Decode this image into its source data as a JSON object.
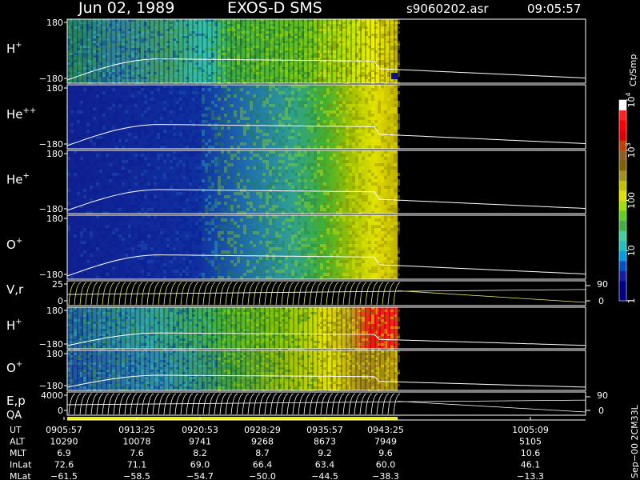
{
  "header": {
    "date": "Jun 02, 1989",
    "instrument": "EXOS-D SMS",
    "file": "s9060202.asr",
    "time": "09:05:57"
  },
  "colorbar": {
    "title": "Ct/Smp",
    "ticks": [
      {
        "label": "1",
        "value": 1
      },
      {
        "label": "10",
        "value": 10
      },
      {
        "label": "100",
        "value": 100
      },
      {
        "label": "10",
        "exp": "3",
        "value": 1000
      },
      {
        "label": "10",
        "exp": "4",
        "value": 10000
      }
    ],
    "colors": [
      "#000080",
      "#00008b",
      "#1a1aa8",
      "#0050c8",
      "#00a0e0",
      "#20c0c0",
      "#40d0a0",
      "#40b040",
      "#60d020",
      "#a0e000",
      "#e0e000",
      "#c0c000",
      "#a09020",
      "#806000",
      "#906020",
      "#c04000",
      "#e00000",
      "#ff0000",
      "#ff2020",
      "#ffffff"
    ]
  },
  "panels": [
    {
      "id": "h-plus",
      "label": "H",
      "sup": "+",
      "ymax": "180",
      "ymin": "−180"
    },
    {
      "id": "he-plus-plus",
      "label": "He",
      "sup": "++",
      "ymax": "180",
      "ymin": "−180"
    },
    {
      "id": "he-plus",
      "label": "He",
      "sup": "+",
      "ymax": "180",
      "ymin": "−180"
    },
    {
      "id": "o-plus",
      "label": "O",
      "sup": "+",
      "ymax": "180",
      "ymin": "−180"
    },
    {
      "id": "vr",
      "label": "V,r",
      "ymax": "25",
      "ymin": "0",
      "right_max": "90",
      "right_min": "0"
    },
    {
      "id": "h-plus-2",
      "label": "H",
      "sup": "+",
      "ymax": "180",
      "ymin": "−180"
    },
    {
      "id": "o-plus-2",
      "label": "O",
      "sup": "+",
      "ymax": "180",
      "ymin": "−180"
    },
    {
      "id": "ep",
      "label": "E,p",
      "ymax": "4000",
      "ymin": "0",
      "right_max": "90",
      "right_min": "0"
    }
  ],
  "qa_label": "QA",
  "side_label": "Sep−00  2CM33L",
  "axis": {
    "rows": [
      {
        "name": "UT",
        "values": [
          "0905:57",
          "0913:25",
          "0920:53",
          "0928:29",
          "0935:57",
          "0943:25",
          "1005:09"
        ]
      },
      {
        "name": "ALT",
        "values": [
          "10290",
          "10078",
          "9741",
          "9268",
          "8673",
          "7949",
          "5105"
        ]
      },
      {
        "name": "MLT",
        "values": [
          "6.9",
          "7.6",
          "8.2",
          "8.7",
          "9.2",
          "9.6",
          "10.6"
        ]
      },
      {
        "name": "InLat",
        "values": [
          "72.6",
          "71.1",
          "69.0",
          "66.4",
          "63.4",
          "60.0",
          "46.1"
        ]
      },
      {
        "name": "MLat",
        "values": [
          "−61.5",
          "−58.5",
          "−54.7",
          "−50.0",
          "−44.5",
          "−38.3",
          "−13.3"
        ]
      }
    ]
  },
  "chart_data": {
    "type": "heatmap",
    "title": "Jun 02, 1989   EXOS-D SMS",
    "x_ticks": [
      "0905:57",
      "0913:25",
      "0920:53",
      "0928:29",
      "0935:57",
      "0943:25",
      "1005:09"
    ],
    "colorbar_unit": "Ct/Smp",
    "colorbar_range": [
      1,
      10000
    ],
    "colorbar_scale": "log",
    "panels": [
      "H+",
      "He++",
      "He+",
      "O+",
      "V,r",
      "H+",
      "O+",
      "E,p"
    ],
    "data_end": "0943:25"
  }
}
